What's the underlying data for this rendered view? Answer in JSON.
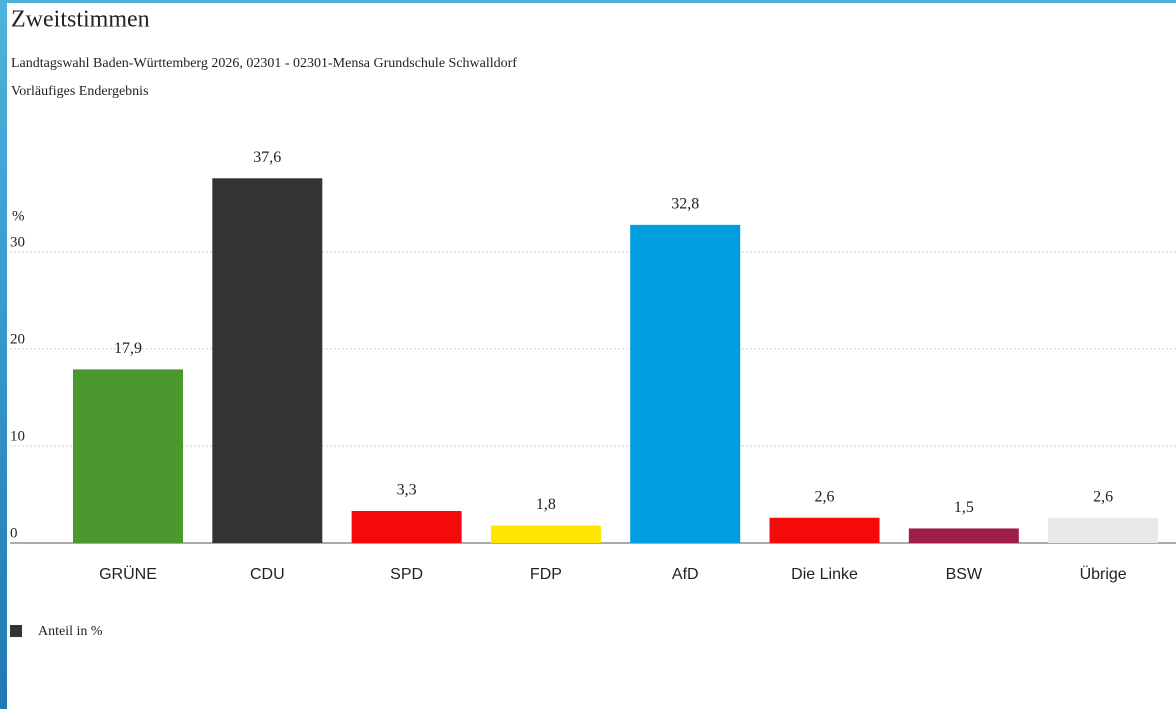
{
  "chart_data": {
    "type": "bar",
    "title": "Zweitstimmen",
    "subtitle": "Landtagswahl Baden-Württemberg 2026, 02301 - 02301-Mensa Grundschule Schwalldorf",
    "note": "Vorläufiges Endergebnis",
    "y_label": "%",
    "categories": [
      "GRÜNE",
      "CDU",
      "SPD",
      "FDP",
      "AfD",
      "Die Linke",
      "BSW",
      "Übrige"
    ],
    "values": [
      17.9,
      37.6,
      3.3,
      1.8,
      32.8,
      2.6,
      1.5,
      2.6
    ],
    "value_labels": [
      "17,9",
      "37,6",
      "3,3",
      "1,8",
      "32,8",
      "2,6",
      "1,5",
      "2,6"
    ],
    "colors": [
      "#4b992e",
      "#333333",
      "#f50a0a",
      "#ffe500",
      "#009ee0",
      "#f50a0a",
      "#9e1e4c",
      "#e8e8e8"
    ],
    "legend": {
      "label": "Anteil in %",
      "color": "#333333"
    },
    "ylim": [
      0,
      40
    ],
    "yticks": [
      0,
      10,
      20,
      30
    ],
    "grid": true
  }
}
